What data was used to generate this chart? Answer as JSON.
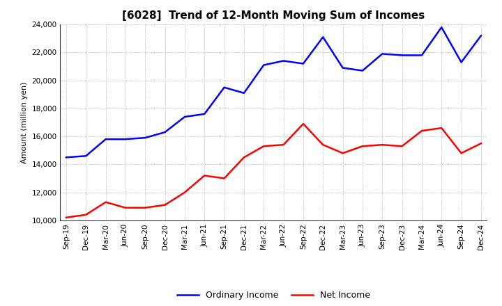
{
  "title": "[6028]  Trend of 12-Month Moving Sum of Incomes",
  "ylabel": "Amount (million yen)",
  "ylim": [
    10000,
    24000
  ],
  "yticks": [
    10000,
    12000,
    14000,
    16000,
    18000,
    20000,
    22000,
    24000
  ],
  "background_color": "#ffffff",
  "plot_bg_color": "#ffffff",
  "grid_color": "#999999",
  "x_labels": [
    "Sep-19",
    "Dec-19",
    "Mar-20",
    "Jun-20",
    "Sep-20",
    "Dec-20",
    "Mar-21",
    "Jun-21",
    "Sep-21",
    "Dec-21",
    "Mar-22",
    "Jun-22",
    "Sep-22",
    "Dec-22",
    "Mar-23",
    "Jun-23",
    "Sep-23",
    "Dec-23",
    "Mar-24",
    "Jun-24",
    "Sep-24",
    "Dec-24"
  ],
  "ordinary_income": [
    14500,
    14600,
    15800,
    15800,
    15900,
    16300,
    17400,
    17600,
    19500,
    19100,
    21100,
    21400,
    21200,
    23100,
    20900,
    20700,
    21900,
    21800,
    21800,
    23800,
    21300,
    23200
  ],
  "net_income": [
    10200,
    10400,
    11300,
    10900,
    10900,
    11100,
    12000,
    13200,
    13000,
    14500,
    15300,
    15400,
    16900,
    15400,
    14800,
    15300,
    15400,
    15300,
    16400,
    16600,
    14800,
    15500
  ],
  "ordinary_color": "#0000ff",
  "net_color": "#ff0000",
  "line_width": 1.8,
  "title_fontsize": 11,
  "axis_label_fontsize": 8,
  "tick_fontsize": 7.5,
  "legend_fontsize": 9
}
